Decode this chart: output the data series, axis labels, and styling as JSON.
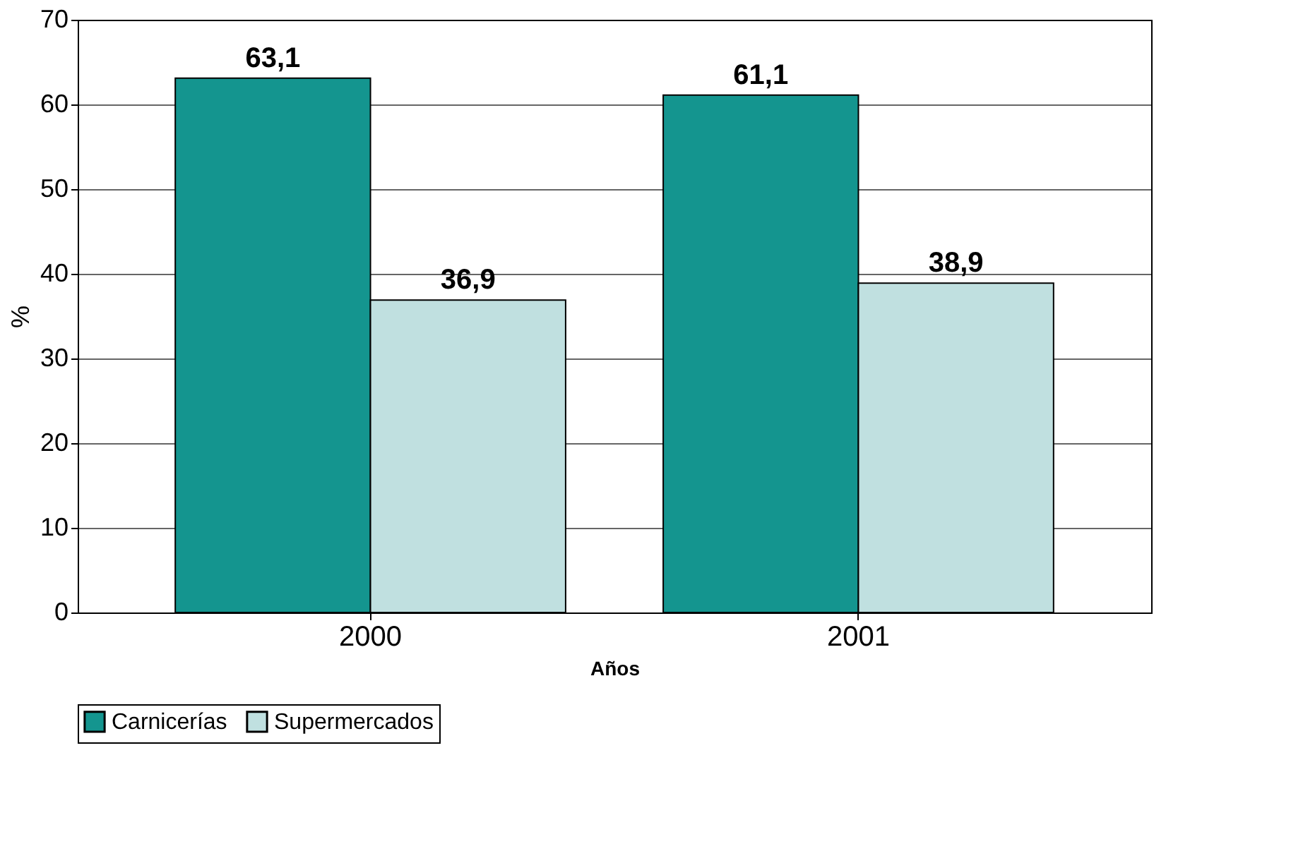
{
  "chart_data": {
    "type": "bar",
    "xlabel": "Años",
    "ylabel": "%",
    "categories": [
      "2000",
      "2001"
    ],
    "series": [
      {
        "name": "Carnicerías",
        "color": "#14958f",
        "values": [
          63.1,
          61.1
        ],
        "value_labels": [
          "63,1",
          "61,1"
        ]
      },
      {
        "name": "Supermercados",
        "color": "#c0e0e0",
        "values": [
          36.9,
          38.9
        ],
        "value_labels": [
          "36,9",
          "38,9"
        ]
      }
    ],
    "ylim": [
      0,
      70
    ],
    "yticks": [
      0,
      10,
      20,
      30,
      40,
      50,
      60,
      70
    ],
    "grid": "y",
    "legend": "bottom"
  }
}
